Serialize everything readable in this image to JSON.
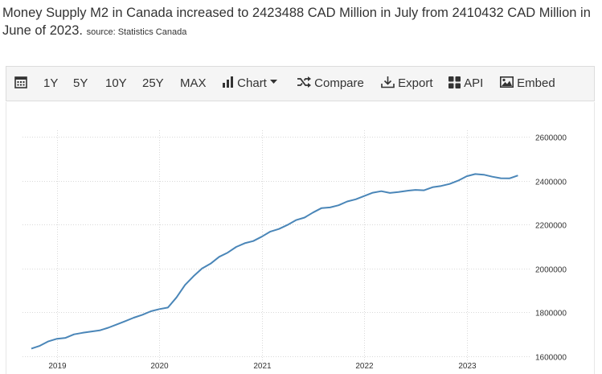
{
  "headline": {
    "text": "Money Supply M2 in Canada increased to 2423488 CAD Million in July from 2410432 CAD Million in June of 2023.",
    "source": "source: Statistics Canada"
  },
  "toolbar": {
    "range_1y": "1Y",
    "range_5y": "5Y",
    "range_10y": "10Y",
    "range_25y": "25Y",
    "range_max": "MAX",
    "chart_label": "Chart",
    "compare_label": "Compare",
    "export_label": "Export",
    "api_label": "API",
    "embed_label": "Embed"
  },
  "colors": {
    "line": "#4a86b8",
    "grid": "#d9d9d9",
    "text": "#333333"
  },
  "chart_data": {
    "type": "line",
    "title": "",
    "xlabel": "",
    "ylabel": "",
    "ylim": [
      1600000,
      2600000
    ],
    "yticks": [
      1600000,
      1800000,
      2000000,
      2200000,
      2400000,
      2600000
    ],
    "ytick_labels": [
      "1600000",
      "1800000",
      "2000000",
      "2200000",
      "2400000",
      "2600000"
    ],
    "x_tick_labels": [
      "2019",
      "2020",
      "2021",
      "2022",
      "2023"
    ],
    "x_tick_months": [
      3,
      15,
      27,
      39,
      51
    ],
    "xlim_months": [
      0,
      58
    ],
    "grid": true,
    "series": [
      {
        "name": "Money Supply M2",
        "x_months": [
          0,
          1,
          2,
          3,
          4,
          5,
          6,
          7,
          8,
          9,
          10,
          11,
          12,
          13,
          14,
          15,
          16,
          17,
          18,
          19,
          20,
          21,
          22,
          23,
          24,
          25,
          26,
          27,
          28,
          29,
          30,
          31,
          32,
          33,
          34,
          35,
          36,
          37,
          38,
          39,
          40,
          41,
          42,
          43,
          44,
          45,
          46,
          47,
          48,
          49,
          50,
          51,
          52,
          53,
          54,
          55,
          56,
          57
        ],
        "values": [
          1635000,
          1648000,
          1668000,
          1680000,
          1684000,
          1700000,
          1707000,
          1713000,
          1718000,
          1730000,
          1745000,
          1760000,
          1776000,
          1789000,
          1805000,
          1815000,
          1822000,
          1868000,
          1925000,
          1965000,
          2000000,
          2022000,
          2053000,
          2072000,
          2098000,
          2115000,
          2125000,
          2145000,
          2168000,
          2180000,
          2198000,
          2220000,
          2232000,
          2255000,
          2275000,
          2278000,
          2288000,
          2305000,
          2315000,
          2330000,
          2345000,
          2352000,
          2344000,
          2348000,
          2354000,
          2358000,
          2356000,
          2370000,
          2376000,
          2385000,
          2400000,
          2420000,
          2430000,
          2427000,
          2418000,
          2411000,
          2410432,
          2423488
        ]
      }
    ]
  }
}
